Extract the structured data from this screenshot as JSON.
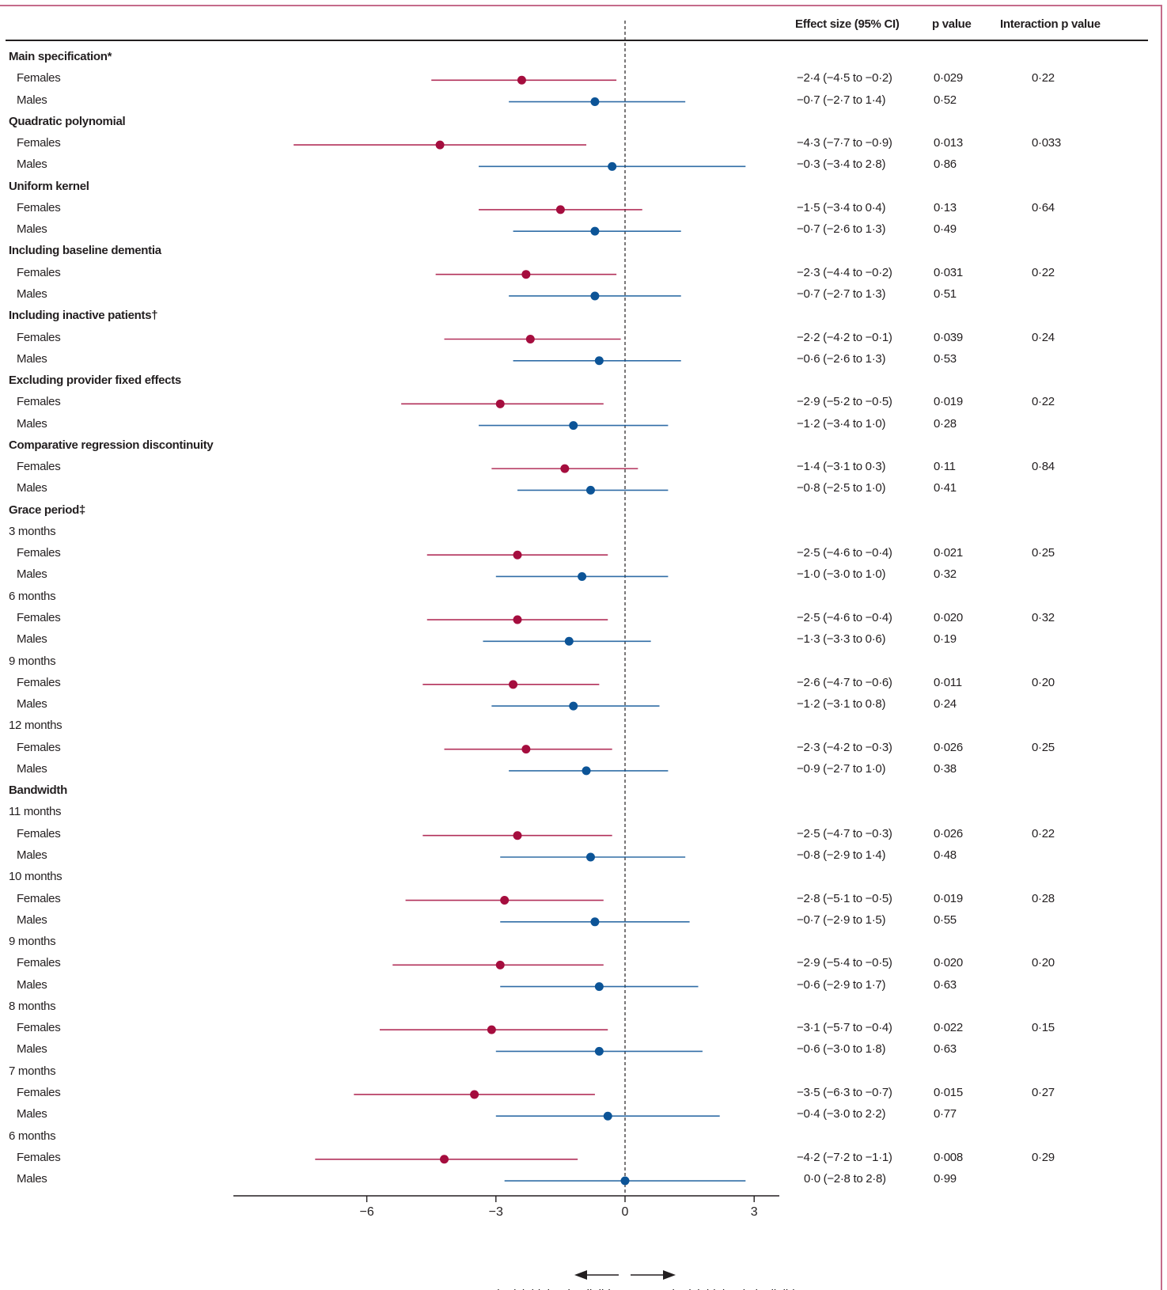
{
  "header": {
    "effect": "Effect size (95% CI)",
    "p": "p value",
    "interaction": "Interaction p value"
  },
  "colors": {
    "females": "#a50d3e",
    "males": "#0c5497",
    "frame": "#c56b8a"
  },
  "chart_data": {
    "type": "forest",
    "xlim": [
      -9,
      3.6
    ],
    "xticks": [
      -6,
      -3,
      0,
      3
    ],
    "xtick_labels": [
      "−6",
      "−3",
      "0",
      "3"
    ],
    "reference_line": 0,
    "direction_labels": {
      "left": "Dementia risk higher in eligible",
      "right": "Dementia risk higher in ineligible"
    },
    "rows": [
      {
        "label": "Main specification*",
        "kind": "heading"
      },
      {
        "label": "Females",
        "kind": "female",
        "est": -2.4,
        "lo": -4.5,
        "hi": -0.2,
        "effect": "−2·4 (−4·5 to −0·2)",
        "p": "0·029",
        "interaction": "0·22"
      },
      {
        "label": "Males",
        "kind": "male",
        "est": -0.7,
        "lo": -2.7,
        "hi": 1.4,
        "effect": "−0·7 (−2·7 to 1·4)",
        "p": "0·52",
        "interaction": ""
      },
      {
        "label": "Quadratic polynomial",
        "kind": "heading"
      },
      {
        "label": "Females",
        "kind": "female",
        "est": -4.3,
        "lo": -7.7,
        "hi": -0.9,
        "effect": "−4·3 (−7·7 to −0·9)",
        "p": "0·013",
        "interaction": "0·033"
      },
      {
        "label": "Males",
        "kind": "male",
        "est": -0.3,
        "lo": -3.4,
        "hi": 2.8,
        "effect": "−0·3 (−3·4 to 2·8)",
        "p": "0·86",
        "interaction": ""
      },
      {
        "label": "Uniform kernel",
        "kind": "heading"
      },
      {
        "label": "Females",
        "kind": "female",
        "est": -1.5,
        "lo": -3.4,
        "hi": 0.4,
        "effect": "−1·5 (−3·4 to 0·4)",
        "p": "0·13",
        "interaction": "0·64"
      },
      {
        "label": "Males",
        "kind": "male",
        "est": -0.7,
        "lo": -2.6,
        "hi": 1.3,
        "effect": "−0·7 (−2·6 to 1·3)",
        "p": "0·49",
        "interaction": ""
      },
      {
        "label": "Including baseline dementia",
        "kind": "heading"
      },
      {
        "label": "Females",
        "kind": "female",
        "est": -2.3,
        "lo": -4.4,
        "hi": -0.2,
        "effect": "−2·3 (−4·4 to −0·2)",
        "p": "0·031",
        "interaction": "0·22"
      },
      {
        "label": "Males",
        "kind": "male",
        "est": -0.7,
        "lo": -2.7,
        "hi": 1.3,
        "effect": "−0·7 (−2·7 to 1·3)",
        "p": "0·51",
        "interaction": ""
      },
      {
        "label": "Including inactive patients†",
        "kind": "heading"
      },
      {
        "label": "Females",
        "kind": "female",
        "est": -2.2,
        "lo": -4.2,
        "hi": -0.1,
        "effect": "−2·2 (−4·2 to −0·1)",
        "p": "0·039",
        "interaction": "0·24"
      },
      {
        "label": "Males",
        "kind": "male",
        "est": -0.6,
        "lo": -2.6,
        "hi": 1.3,
        "effect": "−0·6 (−2·6 to 1·3)",
        "p": "0·53",
        "interaction": ""
      },
      {
        "label": "Excluding provider fixed effects",
        "kind": "heading"
      },
      {
        "label": "Females",
        "kind": "female",
        "est": -2.9,
        "lo": -5.2,
        "hi": -0.5,
        "effect": "−2·9 (−5·2 to −0·5)",
        "p": "0·019",
        "interaction": "0·22"
      },
      {
        "label": "Males",
        "kind": "male",
        "est": -1.2,
        "lo": -3.4,
        "hi": 1.0,
        "effect": "−1·2 (−3·4 to 1·0)",
        "p": "0·28",
        "interaction": ""
      },
      {
        "label": "Comparative regression discontinuity",
        "kind": "heading"
      },
      {
        "label": "Females",
        "kind": "female",
        "est": -1.4,
        "lo": -3.1,
        "hi": 0.3,
        "effect": "−1·4 (−3·1 to 0·3)",
        "p": "0·11",
        "interaction": "0·84"
      },
      {
        "label": "Males",
        "kind": "male",
        "est": -0.8,
        "lo": -2.5,
        "hi": 1.0,
        "effect": "−0·8 (−2·5 to 1·0)",
        "p": "0·41",
        "interaction": ""
      },
      {
        "label": "Grace period‡",
        "kind": "heading"
      },
      {
        "label": "3 months",
        "kind": "sub"
      },
      {
        "label": "Females",
        "kind": "female",
        "est": -2.5,
        "lo": -4.6,
        "hi": -0.4,
        "effect": "−2·5 (−4·6 to −0·4)",
        "p": "0·021",
        "interaction": "0·25"
      },
      {
        "label": "Males",
        "kind": "male",
        "est": -1.0,
        "lo": -3.0,
        "hi": 1.0,
        "effect": "−1·0 (−3·0 to 1·0)",
        "p": "0·32",
        "interaction": ""
      },
      {
        "label": "6 months",
        "kind": "sub"
      },
      {
        "label": "Females",
        "kind": "female",
        "est": -2.5,
        "lo": -4.6,
        "hi": -0.4,
        "effect": "−2·5 (−4·6 to −0·4)",
        "p": "0·020",
        "interaction": "0·32"
      },
      {
        "label": "Males",
        "kind": "male",
        "est": -1.3,
        "lo": -3.3,
        "hi": 0.6,
        "effect": "−1·3 (−3·3 to 0·6)",
        "p": "0·19",
        "interaction": ""
      },
      {
        "label": "9 months",
        "kind": "sub"
      },
      {
        "label": "Females",
        "kind": "female",
        "est": -2.6,
        "lo": -4.7,
        "hi": -0.6,
        "effect": "−2·6 (−4·7 to −0·6)",
        "p": "0·011",
        "interaction": "0·20"
      },
      {
        "label": "Males",
        "kind": "male",
        "est": -1.2,
        "lo": -3.1,
        "hi": 0.8,
        "effect": "−1·2 (−3·1 to 0·8)",
        "p": "0·24",
        "interaction": ""
      },
      {
        "label": "12 months",
        "kind": "sub"
      },
      {
        "label": "Females",
        "kind": "female",
        "est": -2.3,
        "lo": -4.2,
        "hi": -0.3,
        "effect": "−2·3 (−4·2 to −0·3)",
        "p": "0·026",
        "interaction": "0·25"
      },
      {
        "label": "Males",
        "kind": "male",
        "est": -0.9,
        "lo": -2.7,
        "hi": 1.0,
        "effect": "−0·9 (−2·7 to 1·0)",
        "p": "0·38",
        "interaction": ""
      },
      {
        "label": "Bandwidth",
        "kind": "heading"
      },
      {
        "label": "11 months",
        "kind": "sub"
      },
      {
        "label": "Females",
        "kind": "female",
        "est": -2.5,
        "lo": -4.7,
        "hi": -0.3,
        "effect": "−2·5 (−4·7 to −0·3)",
        "p": "0·026",
        "interaction": "0·22"
      },
      {
        "label": "Males",
        "kind": "male",
        "est": -0.8,
        "lo": -2.9,
        "hi": 1.4,
        "effect": "−0·8 (−2·9 to 1·4)",
        "p": "0·48",
        "interaction": ""
      },
      {
        "label": "10 months",
        "kind": "sub"
      },
      {
        "label": "Females",
        "kind": "female",
        "est": -2.8,
        "lo": -5.1,
        "hi": -0.5,
        "effect": "−2·8 (−5·1 to −0·5)",
        "p": "0·019",
        "interaction": "0·28"
      },
      {
        "label": "Males",
        "kind": "male",
        "est": -0.7,
        "lo": -2.9,
        "hi": 1.5,
        "effect": "−0·7 (−2·9 to 1·5)",
        "p": "0·55",
        "interaction": ""
      },
      {
        "label": "9 months",
        "kind": "sub"
      },
      {
        "label": "Females",
        "kind": "female",
        "est": -2.9,
        "lo": -5.4,
        "hi": -0.5,
        "effect": "−2·9 (−5·4 to −0·5)",
        "p": "0·020",
        "interaction": "0·20"
      },
      {
        "label": "Males",
        "kind": "male",
        "est": -0.6,
        "lo": -2.9,
        "hi": 1.7,
        "effect": "−0·6 (−2·9 to 1·7)",
        "p": "0·63",
        "interaction": ""
      },
      {
        "label": "8 months",
        "kind": "sub"
      },
      {
        "label": "Females",
        "kind": "female",
        "est": -3.1,
        "lo": -5.7,
        "hi": -0.4,
        "effect": "−3·1 (−5·7 to −0·4)",
        "p": "0·022",
        "interaction": "0·15"
      },
      {
        "label": "Males",
        "kind": "male",
        "est": -0.6,
        "lo": -3.0,
        "hi": 1.8,
        "effect": "−0·6 (−3·0 to 1·8)",
        "p": "0·63",
        "interaction": ""
      },
      {
        "label": "7 months",
        "kind": "sub"
      },
      {
        "label": "Females",
        "kind": "female",
        "est": -3.5,
        "lo": -6.3,
        "hi": -0.7,
        "effect": "−3·5 (−6·3 to −0·7)",
        "p": "0·015",
        "interaction": "0·27"
      },
      {
        "label": "Males",
        "kind": "male",
        "est": -0.4,
        "lo": -3.0,
        "hi": 2.2,
        "effect": "−0·4 (−3·0 to 2·2)",
        "p": "0·77",
        "interaction": ""
      },
      {
        "label": "6 months",
        "kind": "sub"
      },
      {
        "label": "Females",
        "kind": "female",
        "est": -4.2,
        "lo": -7.2,
        "hi": -1.1,
        "effect": "−4·2 (−7·2 to −1·1)",
        "p": "0·008",
        "interaction": "0·29"
      },
      {
        "label": "Males",
        "kind": "male",
        "est": 0.0,
        "lo": -2.8,
        "hi": 2.8,
        "effect": "0·0 (−2·8 to 2·8)",
        "p": "0·99",
        "interaction": ""
      }
    ]
  }
}
